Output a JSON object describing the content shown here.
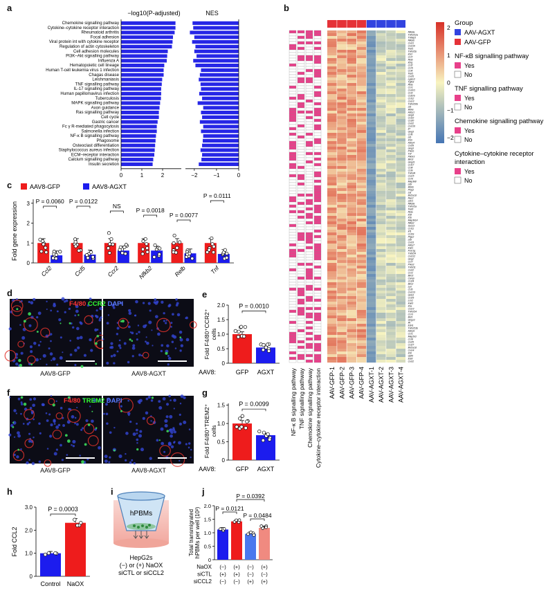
{
  "panel_labels": {
    "a": "a",
    "b": "b",
    "c": "c",
    "d": "d",
    "e": "e",
    "f": "f",
    "g": "g",
    "h": "h",
    "i": "i",
    "j": "j"
  },
  "chart_data": [
    {
      "id": "a",
      "type": "bar",
      "title_left": "−log10(P-adjusted)",
      "title_right": "NES",
      "categories": [
        "Chemokine signalling pathway",
        "Cytokine–cytokine receptor interaction",
        "Rheumatoid arthritis",
        "Focal adhesion",
        "Viral protein int with cytokine receptor",
        "Regulation of actin cytoskeleton",
        "Cell adhesion molecules",
        "PI3K–Akt signalling pathway",
        "Influenza A",
        "Hematopoietic cell lineage",
        "Human T-cell leukemia virus 1 infection",
        "Chagas disease",
        "Leishmaniasis",
        "TNF signalling pathway",
        "IL-17 signalling pathway",
        "Human papillomavirus infection",
        "Tuberculosis",
        "MAPK signalling pathway",
        "Axon guidance",
        "Ras signalling pathway",
        "Cell cycle",
        "Gastric cancer",
        "Fc γ R-mediated phagocytosis",
        "Salmonella infection",
        "NF-κ B signalling pathway",
        "Phagosome",
        "Osteoclast differentiation",
        "Staphylococcus aureus infection",
        "ECM–receptor interaction",
        "Calcium signalling pathway",
        "Insulin secretion"
      ],
      "left_values": [
        2.62,
        2.62,
        2.58,
        2.5,
        2.48,
        2.45,
        2.25,
        2.22,
        2.2,
        2.08,
        2.05,
        2.05,
        1.98,
        1.96,
        1.93,
        1.93,
        1.92,
        1.88,
        1.85,
        1.82,
        1.82,
        1.76,
        1.72,
        1.72,
        1.68,
        1.66,
        1.64,
        1.62,
        1.6,
        1.55,
        1.52
      ],
      "left_xticks": [
        0,
        1,
        2
      ],
      "left_xlim": [
        0,
        2.9
      ],
      "right_values": [
        -2.08,
        -2.05,
        -2.2,
        -2.0,
        -2.1,
        -1.95,
        -2.0,
        -1.9,
        -2.05,
        -1.95,
        -1.7,
        -1.75,
        -1.8,
        -1.72,
        -1.7,
        -1.78,
        -1.65,
        -1.85,
        -1.6,
        -1.7,
        -1.65,
        -1.75,
        -1.6,
        -1.7,
        -1.6,
        -1.62,
        -1.65,
        -1.72,
        -1.65,
        -1.68,
        -1.8
      ],
      "right_xticks": [
        -2,
        -1,
        0
      ],
      "right_xlim": [
        -2.4,
        0
      ],
      "color": "#2626e6"
    },
    {
      "id": "c",
      "type": "bar",
      "ylabel": "Fold gene expression",
      "yticks": [
        0,
        1,
        2,
        3
      ],
      "ylim": [
        0,
        3.2
      ],
      "legend": [
        "AAV8-GFP",
        "AAV8-AGXT"
      ],
      "colors": {
        "gfp": "#ee1c1c",
        "agxt": "#1c1cee"
      },
      "categories": [
        "Ccl2",
        "Ccl5",
        "Ccr2",
        "Nfkb2",
        "Relb",
        "Tnf"
      ],
      "series": [
        {
          "name": "AAV8-GFP",
          "values": [
            1.0,
            1.0,
            1.0,
            1.0,
            1.0,
            1.0
          ]
        },
        {
          "name": "AAV8-AGXT",
          "values": [
            0.38,
            0.42,
            0.62,
            0.62,
            0.48,
            0.45
          ]
        }
      ],
      "annotations": [
        "P = 0.0060",
        "P = 0.0122",
        "NS",
        "P = 0.0018",
        "P = 0.0077",
        "P = 0.0111"
      ]
    },
    {
      "id": "e",
      "type": "bar",
      "ylabel_line1": "Fold F4/80⁺CCR2⁺",
      "ylabel_line2": "cells",
      "yticks": [
        0,
        0.5,
        1.0,
        1.5,
        2.0
      ],
      "ytick_labels": [
        "0",
        "0.5",
        "1.0",
        "1.5",
        "2.0"
      ],
      "ylim": [
        0,
        2.0
      ],
      "categories": [
        "GFP",
        "AGXT"
      ],
      "values": [
        1.0,
        0.54
      ],
      "xprefix": "AAV8:",
      "pvalue": "P = 0.0010"
    },
    {
      "id": "g",
      "type": "bar",
      "ylabel_line1": "Fold F4/80⁺TREM2⁺",
      "ylabel_line2": "cells",
      "yticks": [
        0,
        0.5,
        1.0,
        1.5
      ],
      "ytick_labels": [
        "0",
        "0.5",
        "1.0",
        "1.5"
      ],
      "ylim": [
        0,
        1.55
      ],
      "categories": [
        "GFP",
        "AGXT"
      ],
      "values": [
        1.0,
        0.68
      ],
      "xprefix": "AAV8:",
      "pvalue": "P = 0.0099"
    },
    {
      "id": "h",
      "type": "bar",
      "ylabel": "Fold CCL2",
      "yticks": [
        0,
        1.0,
        2.0,
        3.0
      ],
      "ytick_labels": [
        "0",
        "1.0",
        "2.0",
        "3.0"
      ],
      "ylim": [
        0,
        3.0
      ],
      "categories": [
        "Control",
        "NaOX"
      ],
      "values": [
        1.0,
        2.32
      ],
      "pvalue": "P = 0.0003"
    },
    {
      "id": "j",
      "type": "bar",
      "ylabel_line1": "Total transmigrated",
      "ylabel_line2": "hPBMs per well (10³)",
      "yticks": [
        0,
        0.5,
        1.0,
        1.5,
        2.0
      ],
      "ytick_labels": [
        "0",
        "0.5",
        "1.0",
        "1.5",
        "2.0"
      ],
      "ylim": [
        0,
        2.0
      ],
      "values": [
        1.12,
        1.42,
        0.96,
        1.18
      ],
      "bar_colors": [
        "#1c1cee",
        "#ee1c1c",
        "#4a78ee",
        "#f08a80"
      ],
      "row_labels": [
        "NaOX",
        "siCTL",
        "siCCL2"
      ],
      "rows": [
        [
          "(−)",
          "(+)",
          "(−)",
          "(+)"
        ],
        [
          "(+)",
          "(+)",
          "(−)",
          "(−)"
        ],
        [
          "(−)",
          "(−)",
          "(+)",
          "(+)"
        ]
      ],
      "pvalues": [
        "P = 0.0121",
        "P = 0.0484",
        "P = 0.0392"
      ]
    },
    {
      "id": "b",
      "type": "heatmap",
      "columns": [
        "AAV-GFP-1",
        "AAV-GFP-2",
        "AAV-GFP-3",
        "AAV-GFP-4",
        "AAV-AGXT-1",
        "AAV-AGXT-2",
        "AAV-AGXT-3",
        "AAV-AGXT-4"
      ],
      "annotation_columns": [
        "NF-κ B signalling pathway",
        "TNF signalling pathway",
        "Chemokine signalling pathway",
        "Cytokine–cytokine receptor interaction"
      ],
      "genes": [
        "Nfkbia",
        "Tnfrsf12a",
        "Tnfaip3",
        "Nfkbiz",
        "Cxcl1",
        "Cxcl10",
        "Traf1",
        "Tnfrsf1b",
        "Il1r2",
        "Ccl7",
        "Relb",
        "Il2rg",
        "Ccl2",
        "Ccr5",
        "Ccl4",
        "Traf1",
        "Cxcl5",
        "Lgals3",
        "Tgfb3",
        "Rela",
        "Ccr1",
        "Cx3cl1",
        "Ccl3",
        "Csf2rb",
        "Ccl12",
        "Cxcr3",
        "Tnfrsf10b",
        "Ltb",
        "Ikbke",
        "Adcy1",
        "Gng4",
        "Ccl22",
        "Ccl20",
        "Cxcl2",
        "Cxcl16",
        "Il7",
        "Gng3",
        "Ccl6",
        "Ltb",
        "Il1rn",
        "Adcy4",
        "Cxcl9",
        "Gng3",
        "Prkcb",
        "Tnf",
        "Pik3r3",
        "Birc3",
        "Gng11",
        "Ccl17",
        "Ccl8",
        "Ccl9",
        "Tnfrsf4",
        "Cxcr5",
        "Ccr6",
        "Map3k8",
        "Ltbr",
        "Ikbkb",
        "Plcg2",
        "Lta",
        "Bcl2a1d",
        "Rac2",
        "Ltbr1",
        "Nfkbia",
        "Tnfrsf1a",
        "Traf3",
        "Rela",
        "Il18",
        "Il1b",
        "Map3k14",
        "Nfkb2",
        "Socs3",
        "Ccl11",
        "Irf1",
        "Ccl19",
        "Ptgs2",
        "Ltbr",
        "Cxcl3",
        "Adcy7",
        "Irak1",
        "Fcer1g",
        "Tnfsf14",
        "Cxcl12",
        "Gng2",
        "Ccr7",
        "Prkcd",
        "Tnfsf11",
        "Cxcl2",
        "Ccr2",
        "Birc3",
        "Camp",
        "Ccl24",
        "Birc2",
        "Lyn",
        "Ccl5",
        "Cxcl13",
        "Gnb3",
        "Ccl25",
        "Lcn2",
        "Irak3",
        "Il1a",
        "Cxcr3",
        "Tnfrsf14",
        "Ccr3",
        "Bcl3",
        "Gng12",
        "Il6",
        "Edn1",
        "Tnfrsf13b",
        "Adcy9",
        "Ccr1",
        "Map2k3",
        "Ccr8",
        "Cxcl5",
        "Ccl27",
        "Bcl2a1d",
        "Cxcr4",
        "Il10",
        "Gdf3",
        "Ebi3",
        "Cxcl2"
      ],
      "legend": {
        "group_title": "Group",
        "group": [
          "AAV-AGXT",
          "AAV-GFP"
        ],
        "nfkb_title": "NF-κB signalling pathway",
        "tnf_title": "TNF signalling pathway",
        "chemo_title": "Chemokine signalling pathway",
        "cyto_title": "Cytokine–cytokine receptor interaction",
        "yes": "Yes",
        "no": "No",
        "scale_ticks": [
          "2",
          "1",
          "0",
          "−1",
          "−2"
        ]
      },
      "colors": {
        "gfp": "#e53238",
        "agxt": "#3243e0",
        "yes": "#e8408a",
        "high": "#d73027",
        "mid": "#f8f4c0",
        "low": "#4575b4"
      }
    }
  ],
  "microscopy": {
    "d": {
      "title_red": "F4/80",
      "title_green": "CCR2",
      "title_blue": "DAPI",
      "left": "AAV8-GFP",
      "right": "AAV8-AGXT"
    },
    "f": {
      "title_red": "F4/80",
      "title_green": "TREM2",
      "title_blue": "DAPI",
      "left": "AAV8-GFP",
      "right": "AAV8-AGXT"
    }
  },
  "schematic_i": {
    "label": "hPBMs",
    "caption1": "HepG2s",
    "caption2": "(−) or (+) NaOX",
    "caption3": "siCTL or siCCL2"
  }
}
